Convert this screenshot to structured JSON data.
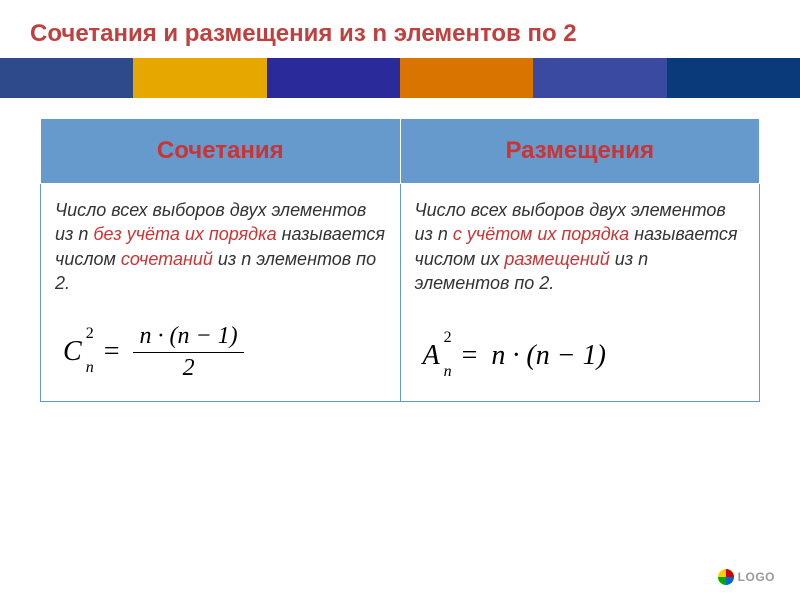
{
  "title": {
    "text": "Сочетания  и размещения из n элементов по 2",
    "color": "#c04040"
  },
  "stripe_colors": [
    "#2e4a8a",
    "#e6a800",
    "#2a2a9a",
    "#d97400",
    "#3a4aa0",
    "#0a3a7a"
  ],
  "table": {
    "header_bg": "#6699cc",
    "col1": {
      "header": "Сочетания",
      "header_color": "#cc3333",
      "def_parts": [
        {
          "t": "Число всех выборов двух элементов ",
          "c": "#333333"
        },
        {
          "t": "из n",
          "c": "#333333"
        },
        {
          "t": " без учёта их порядка",
          "c": "#cc3333"
        },
        {
          "t": "  называется числом ",
          "c": "#333333"
        },
        {
          "t": "сочетаний",
          "c": "#cc3333"
        },
        {
          "t": "  из n элементов по 2.",
          "c": "#333333"
        }
      ],
      "formula": {
        "symbol": "C",
        "sup": "2",
        "sub": "n",
        "numerator": "n · (n − 1)",
        "denominator": "2"
      }
    },
    "col2": {
      "header": "Размещения",
      "header_color": "#cc3333",
      "def_parts": [
        {
          "t": "Число всех выборов двух элементов из n  ",
          "c": "#333333"
        },
        {
          "t": "с учётом их порядка",
          "c": "#cc3333"
        },
        {
          "t": " называется числом их ",
          "c": "#333333"
        },
        {
          "t": "размещений",
          "c": "#cc3333"
        },
        {
          "t": " из n элементов по 2.",
          "c": "#333333"
        }
      ],
      "formula": {
        "symbol": "A",
        "sup": "2",
        "sub": "n",
        "rhs": "n · (n − 1)"
      }
    }
  },
  "logo": "LOGO"
}
